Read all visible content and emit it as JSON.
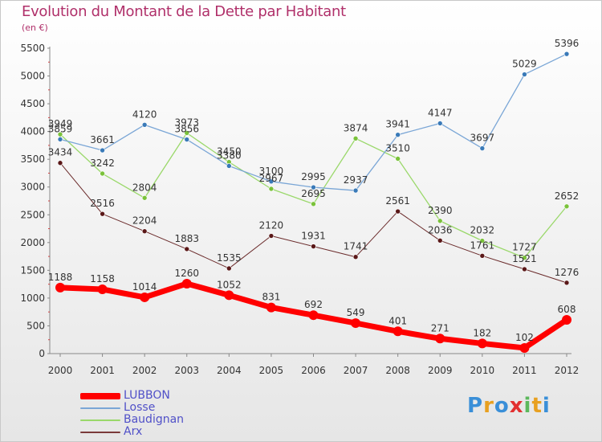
{
  "header": {
    "title": "Evolution du Montant de la Dette par Habitant",
    "unit": "(en €)"
  },
  "legend": [
    {
      "label": "LUBBON",
      "color": "#ff0000"
    },
    {
      "label": "Losse",
      "color": "#7aa6d6"
    },
    {
      "label": "Baudignan",
      "color": "#9ad86a"
    },
    {
      "label": "Arx",
      "color": "#7a3a3a"
    }
  ],
  "logo": {
    "text": "Proxiti",
    "letters": [
      "P",
      "r",
      "o",
      "x",
      "i",
      "t",
      "i"
    ],
    "colors": [
      "#3a8fd8",
      "#e8a020",
      "#3a8fd8",
      "#e23030",
      "#5cb85c",
      "#e8a020",
      "#3a8fd8"
    ]
  },
  "chart_data": {
    "type": "line",
    "title": "Evolution du Montant de la Dette par Habitant",
    "ylabel": "(en €)",
    "xlabel": "",
    "ylim": [
      0,
      5500
    ],
    "yticks": [
      0,
      500,
      1000,
      1500,
      2000,
      2500,
      3000,
      3500,
      4000,
      4500,
      5000,
      5500
    ],
    "grid": false,
    "legend_position": "bottom-left",
    "categories": [
      "2000",
      "2001",
      "2002",
      "2003",
      "2004",
      "2005",
      "2006",
      "2007",
      "2008",
      "2009",
      "2010",
      "2011",
      "2012"
    ],
    "series": [
      {
        "name": "Arx",
        "color": "#6a2a2a",
        "point_color": "#5a1818",
        "width": 1,
        "values": [
          3434,
          2516,
          2204,
          1883,
          1535,
          2120,
          1931,
          1741,
          2561,
          2036,
          1761,
          1521,
          1276
        ]
      },
      {
        "name": "Baudignan",
        "color": "#9ad86a",
        "point_color": "#7ac23a",
        "width": 1.3,
        "values": [
          3949,
          3242,
          2804,
          3973,
          3450,
          2967,
          2695,
          3874,
          3510,
          2390,
          2032,
          1727,
          2652
        ]
      },
      {
        "name": "Losse",
        "color": "#7aa6d6",
        "point_color": "#3a7ab8",
        "width": 1.3,
        "values": [
          3859,
          3661,
          4120,
          3856,
          3380,
          3100,
          2995,
          2937,
          3941,
          4147,
          3697,
          5029,
          5396
        ]
      },
      {
        "name": "LUBBON",
        "color": "#ff0000",
        "point_color": "#ff0000",
        "width": 7,
        "values": [
          1188,
          1158,
          1014,
          1260,
          1052,
          831,
          692,
          549,
          401,
          271,
          182,
          102,
          608
        ]
      }
    ]
  }
}
